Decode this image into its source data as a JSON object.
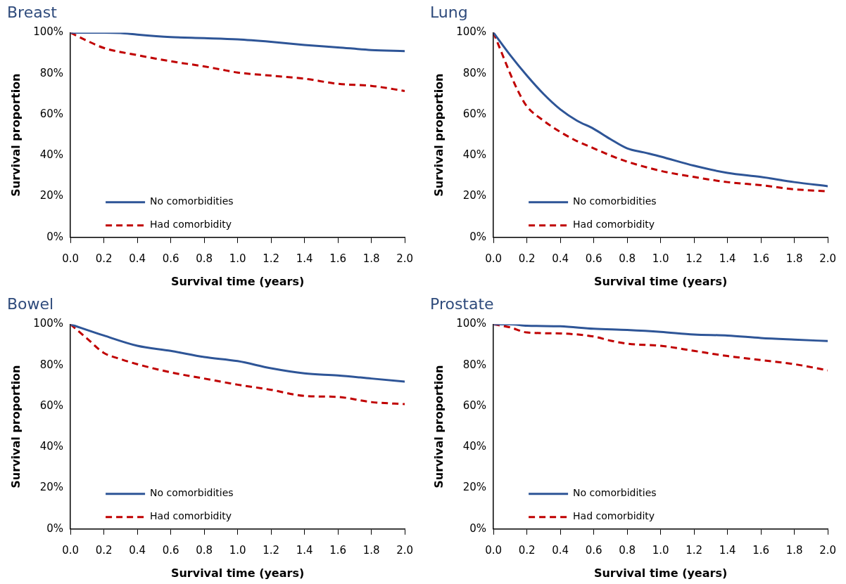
{
  "chart_data": [
    {
      "type": "line",
      "title": "Breast",
      "xlabel": "Survival time (years)",
      "ylabel": "Survival proportion",
      "xlim": [
        0,
        2
      ],
      "xticks": [
        {
          "value": 0,
          "label": "0.0"
        },
        {
          "value": 0.2,
          "label": "0.2"
        },
        {
          "value": 0.4,
          "label": "0.4"
        },
        {
          "value": 0.6,
          "label": "0.6"
        },
        {
          "value": 0.8,
          "label": "0.8"
        },
        {
          "value": 1,
          "label": "1.0"
        },
        {
          "value": 1.2,
          "label": "1.2"
        },
        {
          "value": 1.4,
          "label": "1.4"
        },
        {
          "value": 1.6,
          "label": "1.6"
        },
        {
          "value": 1.8,
          "label": "1.8"
        },
        {
          "value": 2,
          "label": "2.0"
        }
      ],
      "ylim": [
        0,
        100
      ],
      "yticks": [
        {
          "value": 0,
          "label": "0%"
        },
        {
          "value": 20,
          "label": "20%"
        },
        {
          "value": 40,
          "label": "40%"
        },
        {
          "value": 60,
          "label": "60%"
        },
        {
          "value": 80,
          "label": "80%"
        },
        {
          "value": 100,
          "label": "100%"
        }
      ],
      "grid": false,
      "legend": "bottom left",
      "marker": "none",
      "series": [
        {
          "name": "No comorbidities",
          "color": "#2e5597",
          "line_style": "solid",
          "x": [
            0,
            0.2,
            0.3,
            0.4,
            0.6,
            0.8,
            1,
            1.2,
            1.4,
            1.6,
            1.8,
            2
          ],
          "values": [
            100,
            100,
            99.8,
            99,
            97.8,
            97.3,
            96.7,
            95.5,
            94,
            92.8,
            91.5,
            91
          ]
        },
        {
          "name": "Had comorbidity",
          "color": "#c00000",
          "line_style": "dashed",
          "x": [
            0,
            0.1,
            0.2,
            0.4,
            0.6,
            0.8,
            0.9,
            1,
            1.2,
            1.4,
            1.6,
            1.8,
            2
          ],
          "values": [
            100,
            96,
            92.5,
            89,
            86,
            83.5,
            82,
            80.5,
            79,
            77.5,
            75,
            74,
            71.5
          ]
        }
      ]
    },
    {
      "type": "line",
      "title": "Lung",
      "xlabel": "Survival time (years)",
      "ylabel": "Survival proportion",
      "xlim": [
        0,
        2
      ],
      "xticks": [
        {
          "value": 0,
          "label": "0.0"
        },
        {
          "value": 0.2,
          "label": "0.2"
        },
        {
          "value": 0.4,
          "label": "0.4"
        },
        {
          "value": 0.6,
          "label": "0.6"
        },
        {
          "value": 0.8,
          "label": "0.8"
        },
        {
          "value": 1,
          "label": "1.0"
        },
        {
          "value": 1.2,
          "label": "1.2"
        },
        {
          "value": 1.4,
          "label": "1.4"
        },
        {
          "value": 1.6,
          "label": "1.6"
        },
        {
          "value": 1.8,
          "label": "1.8"
        },
        {
          "value": 2,
          "label": "2.0"
        }
      ],
      "ylim": [
        0,
        100
      ],
      "yticks": [
        {
          "value": 0,
          "label": "0%"
        },
        {
          "value": 20,
          "label": "20%"
        },
        {
          "value": 40,
          "label": "40%"
        },
        {
          "value": 60,
          "label": "60%"
        },
        {
          "value": 80,
          "label": "80%"
        },
        {
          "value": 100,
          "label": "100%"
        }
      ],
      "grid": false,
      "legend": "bottom left",
      "marker": "none",
      "series": [
        {
          "name": "No comorbidities",
          "color": "#2e5597",
          "line_style": "solid",
          "x": [
            0,
            0.1,
            0.2,
            0.3,
            0.4,
            0.5,
            0.6,
            0.7,
            0.8,
            0.9,
            1,
            1.2,
            1.4,
            1.6,
            1.8,
            2
          ],
          "values": [
            100,
            89,
            79,
            70,
            62.5,
            57,
            53,
            48,
            43.5,
            41.5,
            39.5,
            35,
            31.5,
            29.5,
            27,
            25
          ]
        },
        {
          "name": "Had comorbidity",
          "color": "#c00000",
          "line_style": "dashed",
          "x": [
            0,
            0.05,
            0.1,
            0.15,
            0.2,
            0.3,
            0.4,
            0.5,
            0.6,
            0.7,
            0.8,
            1,
            1.2,
            1.4,
            1.6,
            1.8,
            2
          ],
          "values": [
            100,
            90,
            80,
            71,
            64,
            57,
            51.5,
            47,
            43.5,
            40,
            37,
            32.5,
            29.5,
            27,
            25.5,
            23.5,
            22.5
          ]
        }
      ]
    },
    {
      "type": "line",
      "title": "Bowel",
      "xlabel": "Survival time (years)",
      "ylabel": "Survival proportion",
      "xlim": [
        0,
        2
      ],
      "xticks": [
        {
          "value": 0,
          "label": "0.0"
        },
        {
          "value": 0.2,
          "label": "0.2"
        },
        {
          "value": 0.4,
          "label": "0.4"
        },
        {
          "value": 0.6,
          "label": "0.6"
        },
        {
          "value": 0.8,
          "label": "0.8"
        },
        {
          "value": 1,
          "label": "1.0"
        },
        {
          "value": 1.2,
          "label": "1.2"
        },
        {
          "value": 1.4,
          "label": "1.4"
        },
        {
          "value": 1.6,
          "label": "1.6"
        },
        {
          "value": 1.8,
          "label": "1.8"
        },
        {
          "value": 2,
          "label": "2.0"
        }
      ],
      "ylim": [
        0,
        100
      ],
      "yticks": [
        {
          "value": 0,
          "label": "0%"
        },
        {
          "value": 20,
          "label": "20%"
        },
        {
          "value": 40,
          "label": "40%"
        },
        {
          "value": 60,
          "label": "60%"
        },
        {
          "value": 80,
          "label": "80%"
        },
        {
          "value": 100,
          "label": "100%"
        }
      ],
      "grid": false,
      "legend": "bottom left",
      "marker": "none",
      "series": [
        {
          "name": "No comorbidities",
          "color": "#2e5597",
          "line_style": "solid",
          "x": [
            0,
            0.2,
            0.4,
            0.6,
            0.8,
            1,
            1.2,
            1.4,
            1.6,
            1.8,
            2
          ],
          "values": [
            100,
            94.5,
            89.5,
            87,
            84,
            82,
            78.5,
            76,
            75,
            73.5,
            72
          ]
        },
        {
          "name": "Had comorbidity",
          "color": "#c00000",
          "line_style": "dashed",
          "x": [
            0,
            0.1,
            0.2,
            0.3,
            0.4,
            0.6,
            0.8,
            1,
            1.2,
            1.4,
            1.6,
            1.8,
            2
          ],
          "values": [
            100,
            93,
            86,
            83,
            80.5,
            76.5,
            73.5,
            70.5,
            68,
            65,
            64.5,
            62,
            61
          ]
        }
      ]
    },
    {
      "type": "line",
      "title": "Prostate",
      "xlabel": "Survival time (years)",
      "ylabel": "Survival proportion",
      "xlim": [
        0,
        2
      ],
      "xticks": [
        {
          "value": 0,
          "label": "0.0"
        },
        {
          "value": 0.2,
          "label": "0.2"
        },
        {
          "value": 0.4,
          "label": "0.4"
        },
        {
          "value": 0.6,
          "label": "0.6"
        },
        {
          "value": 0.8,
          "label": "0.8"
        },
        {
          "value": 1,
          "label": "1.0"
        },
        {
          "value": 1.2,
          "label": "1.2"
        },
        {
          "value": 1.4,
          "label": "1.4"
        },
        {
          "value": 1.6,
          "label": "1.6"
        },
        {
          "value": 1.8,
          "label": "1.8"
        },
        {
          "value": 2,
          "label": "2.0"
        }
      ],
      "ylim": [
        0,
        100
      ],
      "yticks": [
        {
          "value": 0,
          "label": "0%"
        },
        {
          "value": 20,
          "label": "20%"
        },
        {
          "value": 40,
          "label": "40%"
        },
        {
          "value": 60,
          "label": "60%"
        },
        {
          "value": 80,
          "label": "80%"
        },
        {
          "value": 100,
          "label": "100%"
        }
      ],
      "grid": false,
      "legend": "bottom left",
      "marker": "none",
      "series": [
        {
          "name": "No comorbidities",
          "color": "#2e5597",
          "line_style": "solid",
          "x": [
            0,
            0.1,
            0.2,
            0.4,
            0.6,
            0.8,
            1,
            1.2,
            1.4,
            1.6,
            1.8,
            2
          ],
          "values": [
            100,
            100,
            99.3,
            99,
            97.8,
            97.2,
            96.3,
            95,
            94.5,
            93.3,
            92.5,
            91.8
          ]
        },
        {
          "name": "Had comorbidity",
          "color": "#c00000",
          "line_style": "dashed",
          "x": [
            0,
            0.1,
            0.2,
            0.4,
            0.6,
            0.7,
            0.8,
            1,
            1.2,
            1.4,
            1.6,
            1.8,
            2
          ],
          "values": [
            100,
            98.5,
            96,
            95.5,
            94,
            92,
            90.5,
            89.5,
            87,
            84.5,
            82.5,
            80.5,
            77.5
          ]
        }
      ]
    }
  ]
}
